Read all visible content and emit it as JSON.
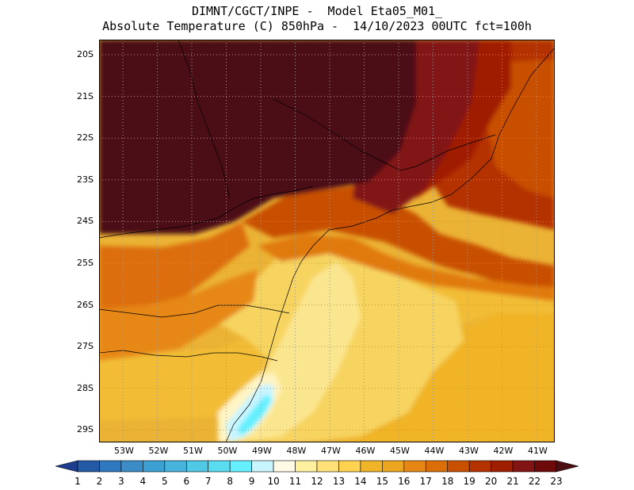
{
  "title": {
    "line1": "DIMNT/CGCT/INPE -  Model Eta05_M01_",
    "line2": "Absolute Temperature (C) 850hPa -  14/10/2023 00UTC fct=100h"
  },
  "map": {
    "lat_labels": [
      "20S",
      "21S",
      "22S",
      "23S",
      "24S",
      "25S",
      "26S",
      "27S",
      "28S",
      "29S"
    ],
    "lon_labels": [
      "53W",
      "52W",
      "51W",
      "50W",
      "49W",
      "48W",
      "47W",
      "46W",
      "45W",
      "44W",
      "43W",
      "42W",
      "41W"
    ],
    "grid": "dotted",
    "background_color": "#ebb335"
  },
  "colorbar": {
    "labels": [
      "1",
      "2",
      "3",
      "4",
      "5",
      "6",
      "7",
      "8",
      "9",
      "10",
      "11",
      "12",
      "13",
      "14",
      "15",
      "16",
      "17",
      "18",
      "19",
      "20",
      "21",
      "22",
      "23"
    ],
    "colors": [
      "#1e3c8c",
      "#245aa5",
      "#2d78be",
      "#3c8cc8",
      "#3ca0d2",
      "#46b4dc",
      "#50c8e6",
      "#5adcf0",
      "#64f0ff",
      "#c8f5ff",
      "#fffae6",
      "#fff0a0",
      "#ffe178",
      "#ffd250",
      "#f0b428",
      "#eba51e",
      "#e68714",
      "#dc6e0a",
      "#c85000",
      "#b43200",
      "#a01e00",
      "#821414",
      "#6e0a0a",
      "#4b0f12"
    ]
  }
}
